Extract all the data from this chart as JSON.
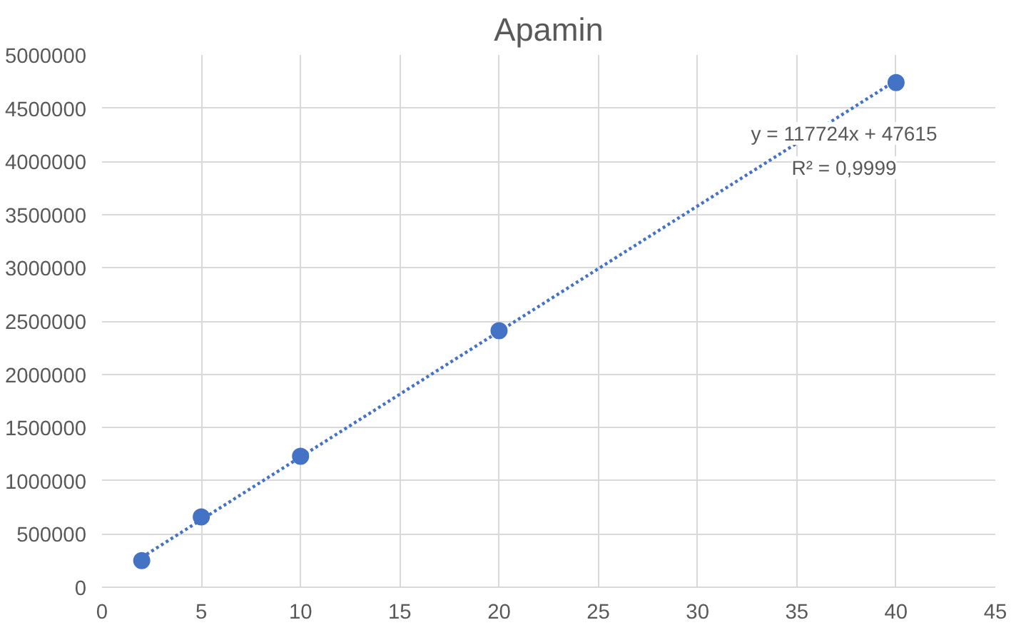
{
  "chart_data": {
    "type": "scatter",
    "title": "Apamin",
    "x": [
      2,
      5,
      10,
      20,
      40
    ],
    "series": [
      {
        "color": "#4472c4",
        "marker": "circle",
        "values": [
          250000,
          660000,
          1230000,
          2410000,
          4740000
        ]
      },
      {
        "type": "line",
        "color": "#4472c4",
        "line_style": "dotted",
        "marker": "none",
        "x": [
          2,
          40
        ],
        "values": [
          280000,
          4760000
        ]
      }
    ],
    "xlim": [
      0,
      45
    ],
    "xticks": [
      0,
      5,
      10,
      15,
      20,
      25,
      30,
      35,
      40,
      45
    ],
    "ylim": [
      0,
      5000000
    ],
    "yticks": [
      0,
      500000,
      1000000,
      1500000,
      2000000,
      2500000,
      3000000,
      3500000,
      4000000,
      4500000,
      5000000
    ],
    "grid": true,
    "annotations": [
      "y = 117724x + 47615",
      "R² = 0,9999"
    ]
  }
}
